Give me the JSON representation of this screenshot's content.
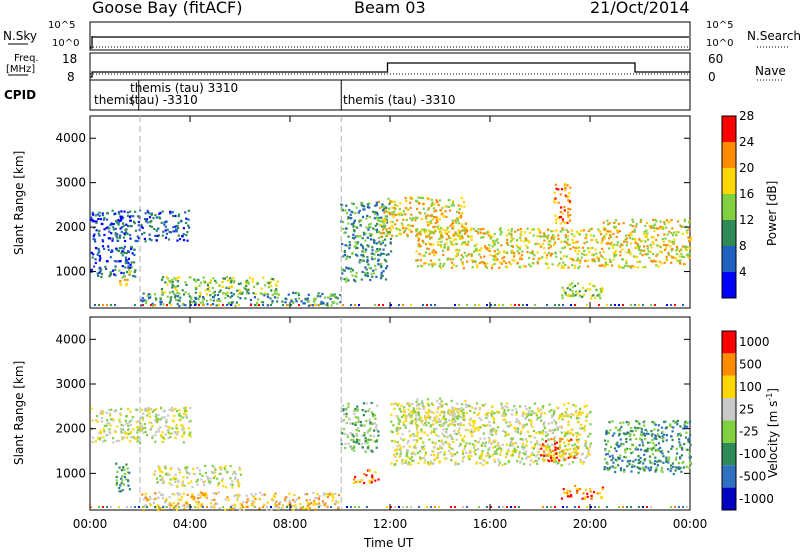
{
  "header": {
    "station": "Goose Bay (fitACF)",
    "beam": "Beam 03",
    "date": "21/Oct/2014"
  },
  "panels": {
    "nsky_label": "N.Sky",
    "nsky_ticks": [
      "10^5",
      "10^0"
    ],
    "nsearch_label": "N.Search",
    "nsearch_ticks": [
      "10^5",
      "10^0"
    ],
    "freq_label": "Freq.",
    "freq_unit": "[MHz]",
    "freq_ticks": [
      "18",
      "8"
    ],
    "nave_label": "Nave",
    "nave_ticks": [
      "60",
      "0"
    ],
    "cpid_label": "CPID",
    "cpid_segments": [
      "themis",
      "themis (tau) 3310",
      "(tau) -3310",
      "themis (tau) -3310"
    ]
  },
  "chart_data": [
    {
      "type": "heatmap",
      "name": "power",
      "ylabel": "Slant Range [km]",
      "xlabel": "",
      "xlim": [
        "00:00",
        "24:00"
      ],
      "ylim": [
        180,
        4500
      ],
      "yticks": [
        1000,
        2000,
        3000,
        4000
      ],
      "colorbar_label": "Power [dB]",
      "colorbar_ticks": [
        "4",
        "8",
        "12",
        "16",
        "20",
        "24",
        "28"
      ],
      "colors": [
        "#0000ff",
        "#2060c0",
        "#2e8b57",
        "#80d040",
        "#ffd700",
        "#ff8c00",
        "#ff0000"
      ],
      "regions": [
        {
          "t": [
            0.0,
            4.0
          ],
          "r": [
            1700,
            2400
          ],
          "level": 1
        },
        {
          "t": [
            0.0,
            1.8
          ],
          "r": [
            900,
            1600
          ],
          "level": 1
        },
        {
          "t": [
            1.1,
            1.6
          ],
          "r": [
            700,
            1100
          ],
          "level": 4
        },
        {
          "t": [
            2.8,
            7.5
          ],
          "r": [
            500,
            900
          ],
          "level": 3
        },
        {
          "t": [
            2.0,
            10.0
          ],
          "r": [
            250,
            550
          ],
          "level": 2
        },
        {
          "t": [
            10.0,
            12.0
          ],
          "r": [
            800,
            2600
          ],
          "level": 2
        },
        {
          "t": [
            11.5,
            15.0
          ],
          "r": [
            1800,
            2700
          ],
          "level": 4
        },
        {
          "t": [
            13.0,
            20.5
          ],
          "r": [
            1100,
            2000
          ],
          "level": 4
        },
        {
          "t": [
            18.5,
            19.2
          ],
          "r": [
            2100,
            3000
          ],
          "level": 5
        },
        {
          "t": [
            20.5,
            24.0
          ],
          "r": [
            1100,
            2200
          ],
          "level": 4
        },
        {
          "t": [
            18.8,
            20.5
          ],
          "r": [
            400,
            800
          ],
          "level": 3
        }
      ]
    },
    {
      "type": "heatmap",
      "name": "velocity",
      "ylabel": "Slant Range [km]",
      "xlabel": "Time UT",
      "xlim": [
        "00:00",
        "24:00"
      ],
      "ylim": [
        180,
        4500
      ],
      "yticks": [
        1000,
        2000,
        3000,
        4000
      ],
      "xticks": [
        "00:00",
        "04:00",
        "08:00",
        "12:00",
        "16:00",
        "20:00",
        "00:00"
      ],
      "colorbar_label": "Velocity [m s",
      "colorbar_unit_exp": "-1",
      "colorbar_ticks": [
        "1000",
        "500",
        "100",
        "25",
        "-25",
        "-100",
        "-500",
        "-1000"
      ],
      "colors": [
        "#0000c0",
        "#3070c0",
        "#2e8b57",
        "#80d040",
        "#c8c8c8",
        "#ffd700",
        "#ff8c00",
        "#ff0000"
      ],
      "regions": [
        {
          "t": [
            0.0,
            4.0
          ],
          "r": [
            1700,
            2500
          ],
          "level": 4
        },
        {
          "t": [
            1.0,
            1.6
          ],
          "r": [
            600,
            1300
          ],
          "level": 2
        },
        {
          "t": [
            2.5,
            6.0
          ],
          "r": [
            700,
            1200
          ],
          "level": 4
        },
        {
          "t": [
            2.0,
            10.0
          ],
          "r": [
            200,
            600
          ],
          "level": 5
        },
        {
          "t": [
            10.0,
            11.5
          ],
          "r": [
            1500,
            2600
          ],
          "level": 3
        },
        {
          "t": [
            12.0,
            20.0
          ],
          "r": [
            1200,
            2600
          ],
          "level": 4
        },
        {
          "t": [
            12.5,
            15.0
          ],
          "r": [
            2100,
            2700
          ],
          "level": 4
        },
        {
          "t": [
            18.0,
            19.5
          ],
          "r": [
            1300,
            1800
          ],
          "level": 6
        },
        {
          "t": [
            20.5,
            24.0
          ],
          "r": [
            1000,
            2200
          ],
          "level": 2
        },
        {
          "t": [
            18.8,
            20.5
          ],
          "r": [
            450,
            750
          ],
          "level": 6
        },
        {
          "t": [
            10.5,
            11.5
          ],
          "r": [
            800,
            1100
          ],
          "level": 6
        }
      ]
    }
  ],
  "colors": {
    "axis": "#000000",
    "grid_dash": "#b0b0b0",
    "background": "#ffffff"
  }
}
